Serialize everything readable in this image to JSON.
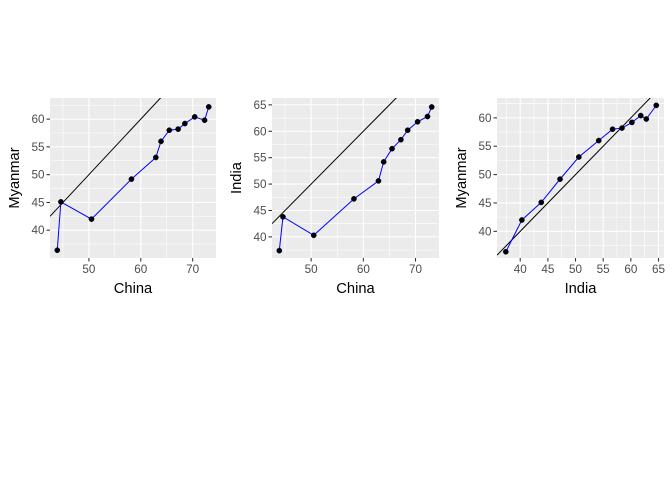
{
  "chart_data": [
    {
      "type": "scatter",
      "xlabel": "China",
      "ylabel": "Myanmar",
      "xlim": [
        42.5,
        74.5
      ],
      "ylim": [
        35.0,
        63.8
      ],
      "xticks": [
        50,
        60,
        70
      ],
      "yticks": [
        40,
        45,
        50,
        55,
        60
      ],
      "grid": true,
      "reference_line": {
        "intercept": 0,
        "slope": 1
      },
      "x": [
        43.9,
        44.6,
        50.5,
        58.2,
        62.9,
        63.9,
        65.5,
        67.2,
        68.5,
        70.4,
        72.3,
        73.1
      ],
      "y": [
        36.4,
        45.1,
        42.0,
        49.2,
        53.1,
        56.0,
        58.0,
        58.2,
        59.2,
        60.4,
        59.8,
        62.2
      ],
      "series_color": "#0000ff",
      "point_color": "#000000"
    },
    {
      "type": "scatter",
      "xlabel": "China",
      "ylabel": "India",
      "xlim": [
        42.5,
        74.5
      ],
      "ylim": [
        36.0,
        66.3
      ],
      "xticks": [
        50,
        60,
        70
      ],
      "yticks": [
        40,
        45,
        50,
        55,
        60,
        65
      ],
      "grid": true,
      "reference_line": {
        "intercept": 0,
        "slope": 1
      },
      "x": [
        43.9,
        44.6,
        50.5,
        58.2,
        62.9,
        63.9,
        65.5,
        67.2,
        68.5,
        70.4,
        72.3,
        73.1
      ],
      "y": [
        37.4,
        43.8,
        40.3,
        47.2,
        50.6,
        54.2,
        56.7,
        58.4,
        60.2,
        61.8,
        62.8,
        64.6
      ],
      "series_color": "#0000ff",
      "point_color": "#000000"
    },
    {
      "type": "scatter",
      "xlabel": "India",
      "ylabel": "Myanmar",
      "xlim": [
        35.8,
        66.0
      ],
      "ylim": [
        35.3,
        63.5
      ],
      "xticks": [
        40,
        45,
        50,
        55,
        60,
        65
      ],
      "yticks": [
        40,
        45,
        50,
        55,
        60
      ],
      "grid": true,
      "reference_line": {
        "intercept": 0,
        "slope": 1
      },
      "x": [
        37.4,
        40.3,
        43.8,
        47.2,
        50.6,
        54.2,
        56.7,
        58.4,
        60.2,
        61.8,
        62.8,
        64.6
      ],
      "y": [
        36.4,
        42.0,
        45.1,
        49.2,
        53.1,
        56.0,
        58.0,
        58.2,
        59.2,
        60.4,
        59.8,
        62.2
      ],
      "series_color": "#0000ff",
      "point_color": "#000000"
    }
  ]
}
